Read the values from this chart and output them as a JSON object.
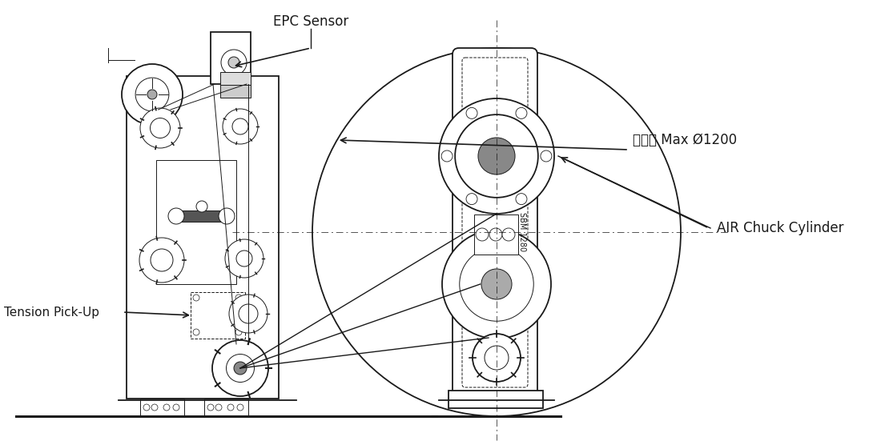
{
  "background_color": "#ffffff",
  "line_color": "#1a1a1a",
  "labels": {
    "epc_sensor": "EPC Sensor",
    "tension_pickup": "Tension Pick-Up",
    "kwon_diameter": "권취경 Max Ø1200",
    "air_chuck": "AIR Chuck Cylinder"
  },
  "figsize": [
    11.1,
    5.51
  ],
  "dpi": 100
}
